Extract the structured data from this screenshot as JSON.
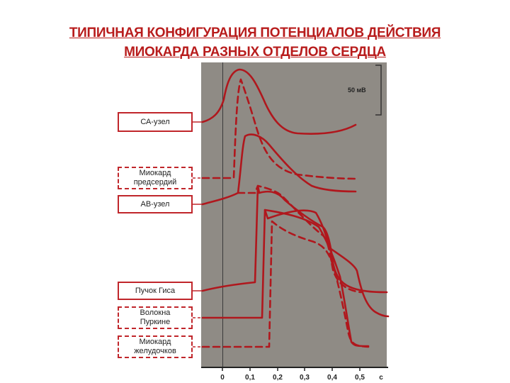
{
  "title": {
    "line1": "ТИПИЧНАЯ КОНФИГУРАЦИЯ ПОТЕНЦИАЛОВ ДЕЙСТВИЯ",
    "line2": "МИОКАРДА РАЗНЫХ ОТДЕЛОВ СЕРДЦА"
  },
  "scale_bar": {
    "label": "50 мВ"
  },
  "axis": {
    "ticks": [
      "0",
      "0,1",
      "0,2",
      "0,3",
      "0,4",
      "0,5"
    ],
    "unit": "с"
  },
  "labels": [
    {
      "text": "СА-узел",
      "style": "solid"
    },
    {
      "text": "Миокард\nпредсердий",
      "style": "dashed"
    },
    {
      "text": "АВ-узел",
      "style": "solid"
    },
    {
      "text": "Пучок Гиса",
      "style": "solid"
    },
    {
      "text": "Волокна\nПуркине",
      "style": "dashed"
    },
    {
      "text": "Миокард\nжелудочков",
      "style": "dashed"
    }
  ],
  "colors": {
    "trace": "#b0171d",
    "panel": "#8f8b85",
    "title": "#b81c1c"
  }
}
